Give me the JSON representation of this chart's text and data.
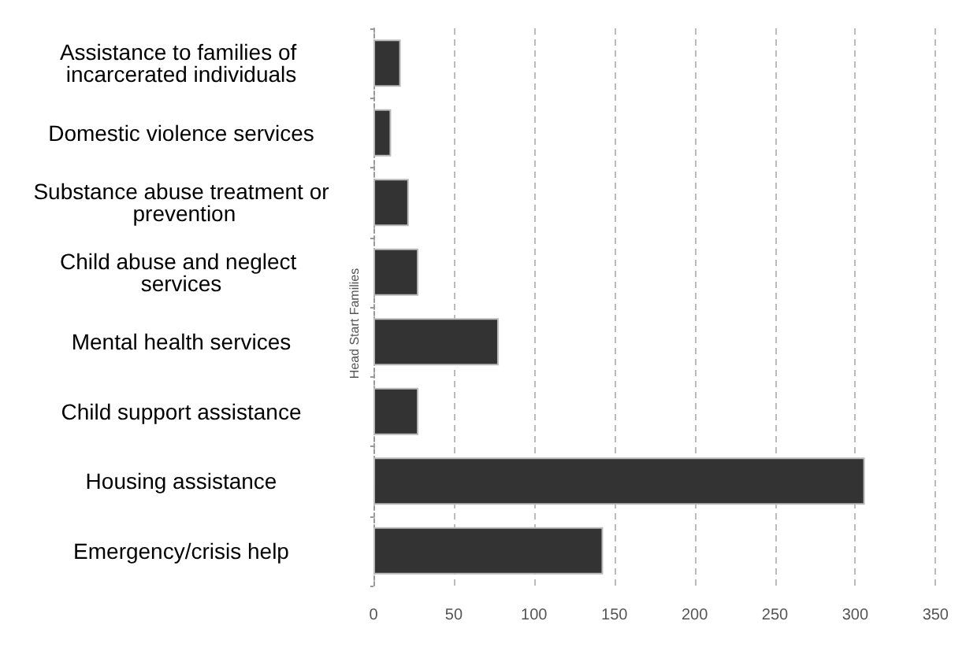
{
  "chart_data": {
    "type": "bar",
    "orientation": "horizontal",
    "ylabel": "Head Start Families",
    "categories": [
      "Assistance to families of incarcerated individuals",
      "Domestic violence services",
      "Substance abuse treatment or prevention",
      "Child abuse and neglect services",
      "Mental health services",
      "Child support assistance",
      "Housing assistance",
      "Emergency/crisis help"
    ],
    "values": [
      17,
      11,
      22,
      28,
      78,
      28,
      306,
      143
    ],
    "color": "#333333",
    "xlim": [
      0,
      350
    ],
    "xticks": [
      0,
      50,
      100,
      150,
      200,
      250,
      300,
      350
    ],
    "grid": "x"
  }
}
